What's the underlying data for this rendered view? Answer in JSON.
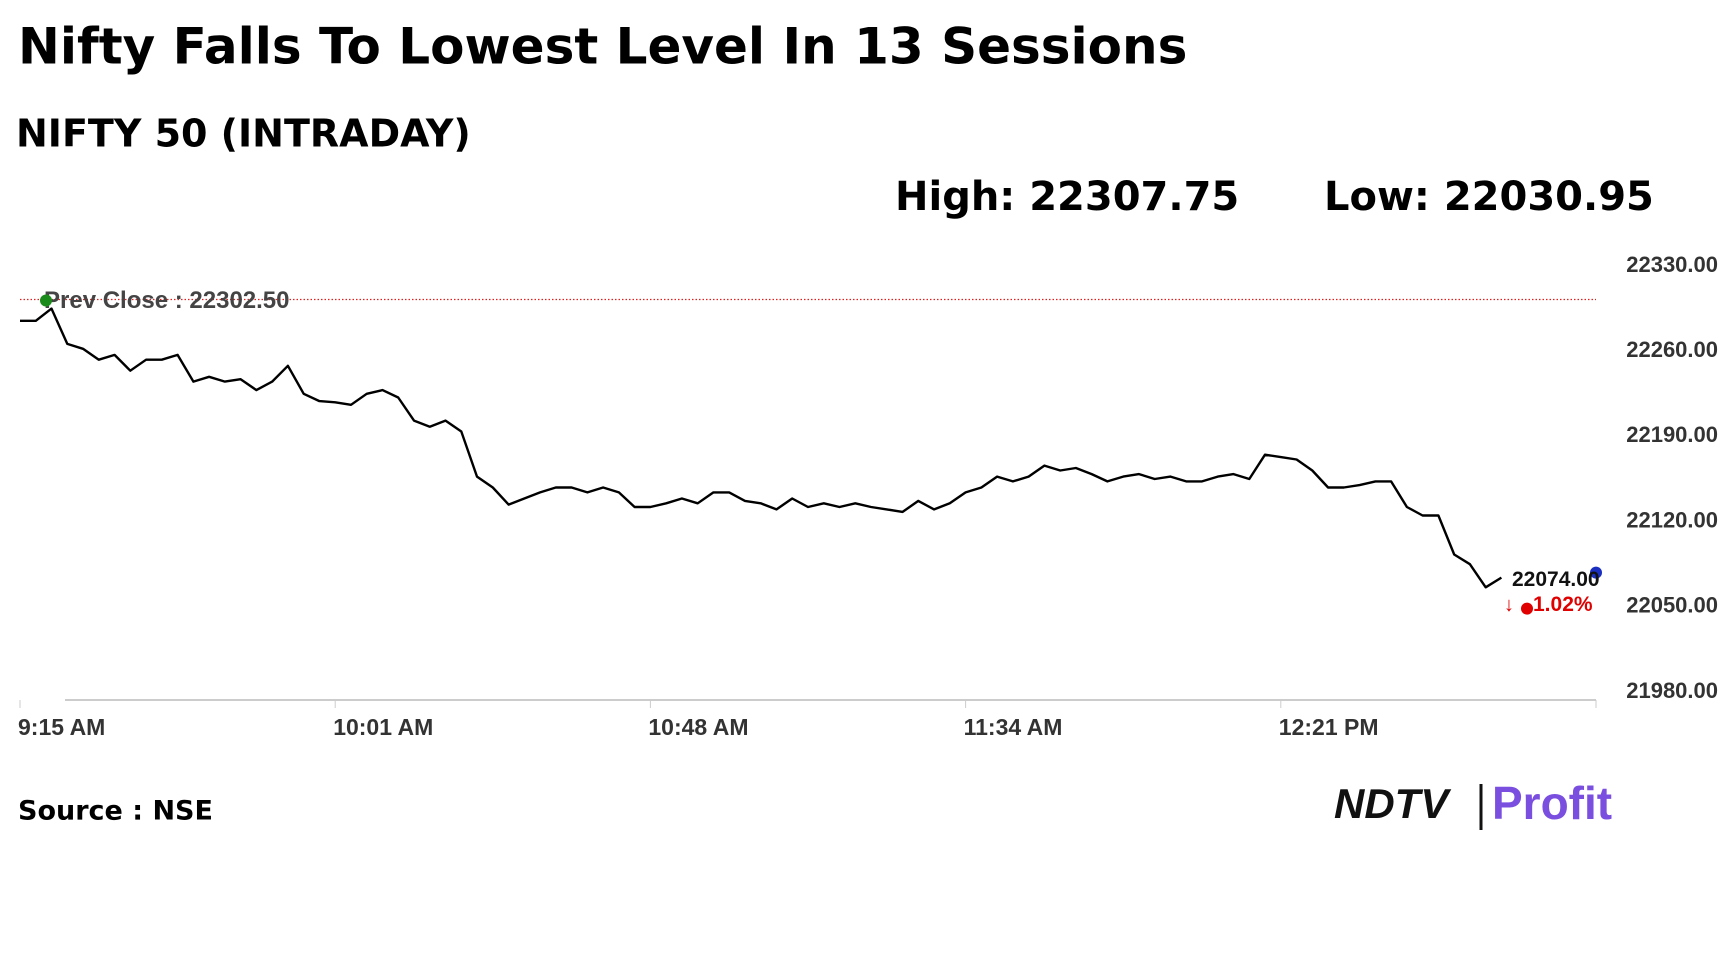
{
  "chart_data": {
    "type": "line",
    "title": "Nifty Falls To Lowest Level In 13 Sessions",
    "subtitle": "NIFTY 50 (INTRADAY)",
    "high_label": "High: 22307.75",
    "low_label": "Low: 22030.95",
    "prev_close": 22302.5,
    "prev_close_label": "Prev Close : 22302.50",
    "change_label": "1.02%",
    "source": "Source : NSE",
    "logo": [
      "NDTV",
      "Profit"
    ],
    "color": "#000000",
    "categories": [
      "9:15 AM",
      null,
      null,
      null,
      null,
      null,
      null,
      null,
      null,
      null,
      null,
      null,
      null,
      null,
      null,
      null,
      null,
      null,
      null,
      null,
      "10:01 AM",
      null,
      null,
      null,
      null,
      null,
      null,
      null,
      null,
      null,
      null,
      null,
      null,
      null,
      null,
      null,
      null,
      null,
      null,
      null,
      "10:48 AM",
      null,
      null,
      null,
      null,
      null,
      null,
      null,
      null,
      null,
      null,
      null,
      null,
      null,
      null,
      null,
      null,
      null,
      null,
      null,
      "11:34 AM",
      null,
      null,
      null,
      null,
      null,
      null,
      null,
      null,
      null,
      null,
      null,
      null,
      null,
      null,
      null,
      null,
      null,
      null,
      null,
      "12:21 PM",
      null,
      null,
      null,
      null,
      null,
      null,
      null,
      null,
      null,
      null,
      null,
      null,
      null,
      null,
      null,
      null,
      null,
      null,
      null,
      null
    ],
    "values": [
      22285,
      22285,
      22295,
      22266,
      22262,
      22253,
      22257,
      22244,
      22253,
      22253,
      22257,
      22235,
      22239,
      22235,
      22237,
      22228,
      22235,
      22248,
      22225,
      22219,
      22218,
      22216,
      22225,
      22228,
      22222,
      22203,
      22198,
      22203,
      22194,
      22157,
      22148,
      22134,
      22139,
      22144,
      22148,
      22148,
      22144,
      22148,
      22144,
      22132,
      22132,
      22135,
      22139,
      22135,
      22144,
      22144,
      22137,
      22135,
      22130,
      22139,
      22132,
      22135,
      22132,
      22135,
      22132,
      22130,
      22128,
      22137,
      22130,
      22135,
      22144,
      22148,
      22157,
      22153,
      22157,
      22166,
      22162,
      22164,
      22159,
      22153,
      22157,
      22159,
      22155,
      22157,
      22153,
      22153,
      22157,
      22159,
      22155,
      22175,
      22173,
      22171,
      22162,
      22148,
      22148,
      22150,
      22153,
      22153,
      22132,
      22125,
      22125,
      22093,
      22085,
      22066,
      22074,
      null,
      null,
      null,
      null,
      null,
      null
    ],
    "value_labels": [
      null,
      null,
      null,
      null,
      null,
      null,
      null,
      null,
      null,
      null,
      null,
      null,
      null,
      null,
      null,
      null,
      null,
      null,
      null,
      null,
      null,
      null,
      null,
      null,
      null,
      null,
      null,
      null,
      null,
      null,
      null,
      null,
      null,
      null,
      null,
      null,
      null,
      null,
      null,
      null,
      null,
      null,
      null,
      null,
      null,
      null,
      null,
      null,
      null,
      null,
      null,
      null,
      null,
      null,
      null,
      null,
      null,
      null,
      null,
      null,
      null,
      null,
      null,
      null,
      null,
      null,
      null,
      null,
      null,
      null,
      null,
      null,
      null,
      null,
      null,
      null,
      null,
      null,
      null,
      null,
      null,
      null,
      null,
      null,
      null,
      null,
      null,
      null,
      null,
      null,
      null,
      null,
      null,
      null,
      "22074.00",
      null,
      null,
      null,
      null,
      null,
      null
    ],
    "ylim": [
      21980,
      22330
    ],
    "yticks": [
      {
        "value": 22330,
        "label": "22330.00"
      },
      {
        "value": 22260,
        "label": "22260.00"
      },
      {
        "value": 22190,
        "label": "22190.00"
      },
      {
        "value": 22120,
        "label": "22120.00"
      },
      {
        "value": 22050,
        "label": "22050.00"
      },
      {
        "value": 21980,
        "label": "21980.00"
      }
    ],
    "grid": false
  }
}
